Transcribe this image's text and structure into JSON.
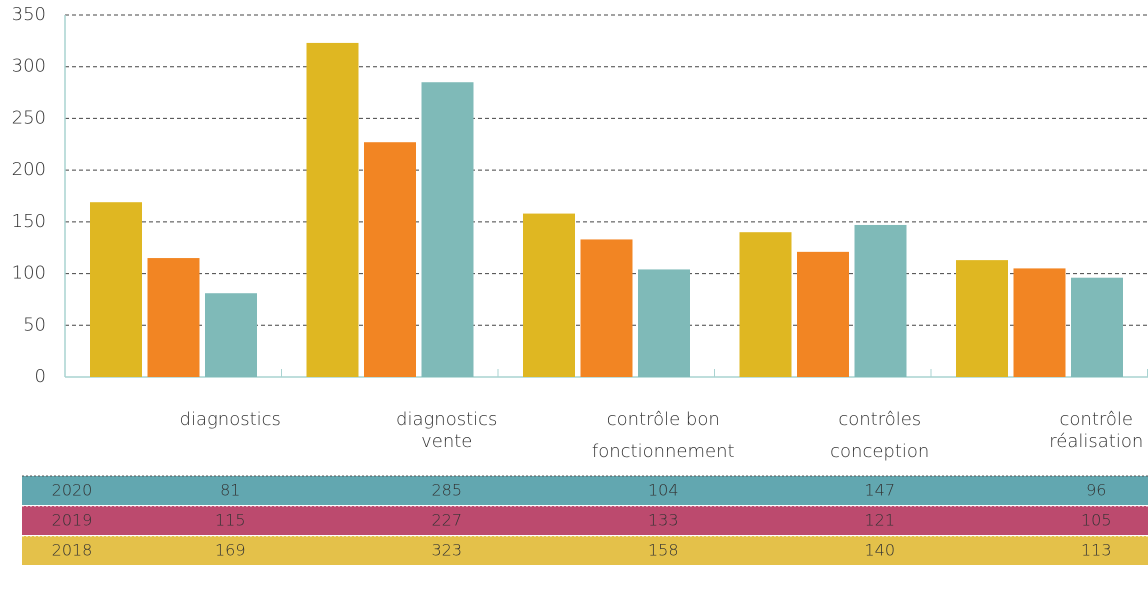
{
  "chart_data": {
    "type": "bar",
    "categories": [
      [
        "diagnostics"
      ],
      [
        "diagnostics",
        "vente"
      ],
      [
        "contrôle bon",
        "fonctionnement"
      ],
      [
        "contrôles",
        "conception"
      ],
      [
        "contrôle",
        "réalisation"
      ]
    ],
    "series": [
      {
        "name": "2018",
        "color": "#dfb722",
        "row_color": "#e4c14a",
        "values": [
          169,
          323,
          158,
          140,
          113
        ]
      },
      {
        "name": "2019",
        "color": "#f28523",
        "row_color": "#bc4a6e",
        "values": [
          115,
          227,
          133,
          121,
          105
        ]
      },
      {
        "name": "2020",
        "color": "#7fbab8",
        "row_color": "#62a7b0",
        "values": [
          81,
          285,
          104,
          147,
          96
        ]
      }
    ],
    "ylim": [
      0,
      350
    ],
    "yticks": [
      0,
      50,
      100,
      150,
      200,
      250,
      300,
      350
    ],
    "grid": true
  }
}
